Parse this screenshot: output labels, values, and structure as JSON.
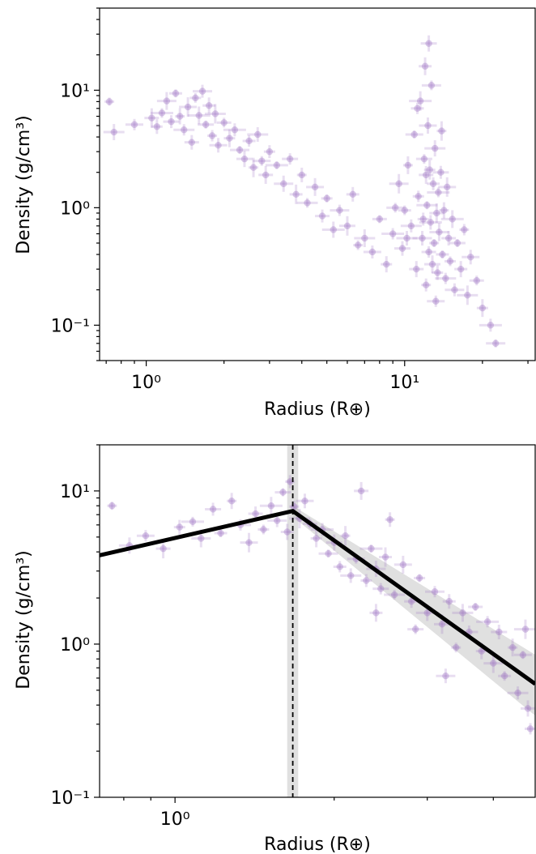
{
  "chart_data": [
    {
      "type": "scatter",
      "title": "",
      "xlabel": "Radius (R⊕)",
      "ylabel": "Density (g/cm³)",
      "xscale": "log",
      "yscale": "log",
      "xlim": [
        0.66,
        32
      ],
      "ylim": [
        0.05,
        50
      ],
      "x_ticks": [
        {
          "value": 1,
          "label": "10⁰"
        },
        {
          "value": 10,
          "label": "10¹"
        }
      ],
      "y_ticks": [
        {
          "value": 10,
          "label": "10¹"
        },
        {
          "value": 1,
          "label": "10⁰"
        },
        {
          "value": 0.1,
          "label": "10⁻¹"
        }
      ],
      "grid": false,
      "marker_color": "#9467bd",
      "series": [
        {
          "name": "",
          "points": [
            [
              0.72,
              8.0
            ],
            [
              0.75,
              4.4
            ],
            [
              0.9,
              5.1
            ],
            [
              1.05,
              5.8
            ],
            [
              1.1,
              4.9
            ],
            [
              1.15,
              6.4
            ],
            [
              1.2,
              8.1
            ],
            [
              1.25,
              5.4
            ],
            [
              1.3,
              9.4
            ],
            [
              1.35,
              6.0
            ],
            [
              1.4,
              4.6
            ],
            [
              1.45,
              7.2
            ],
            [
              1.5,
              3.6
            ],
            [
              1.55,
              8.6
            ],
            [
              1.6,
              6.1
            ],
            [
              1.65,
              9.8
            ],
            [
              1.7,
              5.1
            ],
            [
              1.75,
              7.4
            ],
            [
              1.8,
              4.1
            ],
            [
              1.85,
              6.3
            ],
            [
              1.9,
              3.4
            ],
            [
              2.0,
              5.3
            ],
            [
              2.1,
              3.9
            ],
            [
              2.2,
              4.6
            ],
            [
              2.3,
              3.1
            ],
            [
              2.4,
              2.6
            ],
            [
              2.5,
              3.7
            ],
            [
              2.6,
              2.2
            ],
            [
              2.7,
              4.2
            ],
            [
              2.8,
              2.5
            ],
            [
              2.9,
              1.9
            ],
            [
              3.0,
              3.0
            ],
            [
              3.2,
              2.3
            ],
            [
              3.4,
              1.6
            ],
            [
              3.6,
              2.6
            ],
            [
              3.8,
              1.3
            ],
            [
              4.0,
              1.9
            ],
            [
              4.2,
              1.1
            ],
            [
              4.5,
              1.5
            ],
            [
              4.8,
              0.85
            ],
            [
              5.0,
              1.2
            ],
            [
              5.3,
              0.65
            ],
            [
              5.6,
              0.95
            ],
            [
              6.0,
              0.7
            ],
            [
              6.3,
              1.3
            ],
            [
              6.6,
              0.48
            ],
            [
              7.0,
              0.55
            ],
            [
              7.5,
              0.42
            ],
            [
              8.0,
              0.8
            ],
            [
              8.5,
              0.33
            ],
            [
              9.0,
              0.6
            ],
            [
              9.5,
              1.6
            ],
            [
              9.8,
              0.45
            ],
            [
              10.0,
              0.95
            ],
            [
              10.3,
              2.3
            ],
            [
              10.6,
              0.7
            ],
            [
              10.9,
              4.2
            ],
            [
              11.1,
              0.3
            ],
            [
              11.3,
              1.25
            ],
            [
              11.5,
              8.1
            ],
            [
              11.7,
              0.55
            ],
            [
              11.9,
              2.6
            ],
            [
              12.0,
              16.0
            ],
            [
              12.1,
              0.22
            ],
            [
              12.2,
              1.05
            ],
            [
              12.3,
              5.0
            ],
            [
              12.4,
              0.42
            ],
            [
              12.5,
              2.1
            ],
            [
              12.6,
              0.75
            ],
            [
              12.7,
              11.0
            ],
            [
              12.8,
              0.33
            ],
            [
              12.9,
              1.6
            ],
            [
              13.0,
              0.5
            ],
            [
              13.1,
              3.2
            ],
            [
              13.2,
              0.16
            ],
            [
              13.3,
              0.9
            ],
            [
              13.4,
              0.28
            ],
            [
              13.5,
              1.35
            ],
            [
              13.6,
              0.62
            ],
            [
              13.8,
              2.0
            ],
            [
              14.0,
              0.4
            ],
            [
              14.2,
              0.95
            ],
            [
              14.4,
              0.25
            ],
            [
              14.6,
              1.5
            ],
            [
              14.8,
              0.55
            ],
            [
              15.0,
              0.35
            ],
            [
              15.3,
              0.8
            ],
            [
              15.6,
              0.2
            ],
            [
              16.0,
              0.5
            ],
            [
              16.5,
              0.3
            ],
            [
              17.0,
              0.65
            ],
            [
              17.5,
              0.18
            ],
            [
              18.0,
              0.38
            ],
            [
              19.0,
              0.24
            ],
            [
              20.0,
              0.14
            ],
            [
              21.5,
              0.1
            ],
            [
              22.5,
              0.07
            ],
            [
              12.4,
              25.0
            ],
            [
              11.2,
              7.0
            ],
            [
              13.9,
              4.5
            ],
            [
              10.2,
              0.55
            ],
            [
              9.2,
              1.0
            ],
            [
              12.1,
              1.9
            ],
            [
              11.8,
              0.8
            ]
          ]
        }
      ]
    },
    {
      "type": "scatter",
      "title": "",
      "xlabel": "Radius (R⊕)",
      "ylabel": "Density (g/cm³)",
      "xscale": "log",
      "yscale": "log",
      "xlim": [
        0.72,
        4.8
      ],
      "ylim": [
        0.1,
        20
      ],
      "x_ticks": [
        {
          "value": 1,
          "label": "10⁰"
        }
      ],
      "y_ticks": [
        {
          "value": 10,
          "label": "10¹"
        },
        {
          "value": 1,
          "label": "10⁰"
        },
        {
          "value": 0.1,
          "label": "10⁻¹"
        }
      ],
      "grid": false,
      "marker_color": "#9467bd",
      "series": [
        {
          "name": "",
          "points": [
            [
              0.76,
              8.0
            ],
            [
              0.82,
              4.4
            ],
            [
              0.88,
              5.1
            ],
            [
              0.95,
              4.2
            ],
            [
              1.02,
              5.8
            ],
            [
              1.08,
              6.3
            ],
            [
              1.12,
              4.9
            ],
            [
              1.18,
              7.6
            ],
            [
              1.22,
              5.3
            ],
            [
              1.28,
              8.6
            ],
            [
              1.33,
              6.0
            ],
            [
              1.38,
              4.6
            ],
            [
              1.42,
              7.1
            ],
            [
              1.47,
              5.6
            ],
            [
              1.52,
              8.0
            ],
            [
              1.56,
              6.4
            ],
            [
              1.6,
              9.8
            ],
            [
              1.63,
              5.4
            ],
            [
              1.68,
              7.9
            ],
            [
              1.72,
              6.6
            ],
            [
              1.76,
              8.6
            ],
            [
              1.8,
              6.1
            ],
            [
              1.85,
              4.9
            ],
            [
              1.9,
              5.6
            ],
            [
              1.95,
              3.9
            ],
            [
              2.0,
              4.6
            ],
            [
              2.05,
              3.2
            ],
            [
              2.1,
              5.1
            ],
            [
              2.15,
              2.8
            ],
            [
              2.2,
              3.6
            ],
            [
              2.25,
              10.0
            ],
            [
              2.3,
              2.6
            ],
            [
              2.35,
              4.2
            ],
            [
              2.4,
              3.1
            ],
            [
              2.45,
              2.3
            ],
            [
              2.5,
              3.7
            ],
            [
              2.55,
              6.5
            ],
            [
              2.6,
              2.1
            ],
            [
              2.7,
              3.3
            ],
            [
              2.8,
              1.9
            ],
            [
              2.9,
              2.7
            ],
            [
              3.0,
              1.6
            ],
            [
              3.1,
              2.2
            ],
            [
              3.2,
              1.35
            ],
            [
              3.3,
              1.9
            ],
            [
              3.4,
              0.95
            ],
            [
              3.5,
              1.6
            ],
            [
              3.6,
              1.2
            ],
            [
              3.7,
              1.75
            ],
            [
              3.8,
              0.9
            ],
            [
              3.9,
              1.4
            ],
            [
              4.0,
              0.75
            ],
            [
              4.1,
              1.2
            ],
            [
              4.2,
              0.62
            ],
            [
              4.35,
              0.95
            ],
            [
              4.45,
              0.48
            ],
            [
              4.55,
              0.85
            ],
            [
              4.65,
              0.38
            ],
            [
              4.7,
              0.28
            ],
            [
              4.6,
              1.25
            ],
            [
              3.25,
              0.62
            ],
            [
              2.85,
              1.25
            ],
            [
              2.4,
              1.6
            ],
            [
              1.65,
              11.5
            ]
          ]
        }
      ],
      "fit_line": [
        [
          0.72,
          3.8
        ],
        [
          1.67,
          7.4
        ],
        [
          4.8,
          0.55
        ]
      ],
      "breakpoint_x": 1.67,
      "breakpoint_band": [
        1.63,
        1.71
      ]
    }
  ]
}
